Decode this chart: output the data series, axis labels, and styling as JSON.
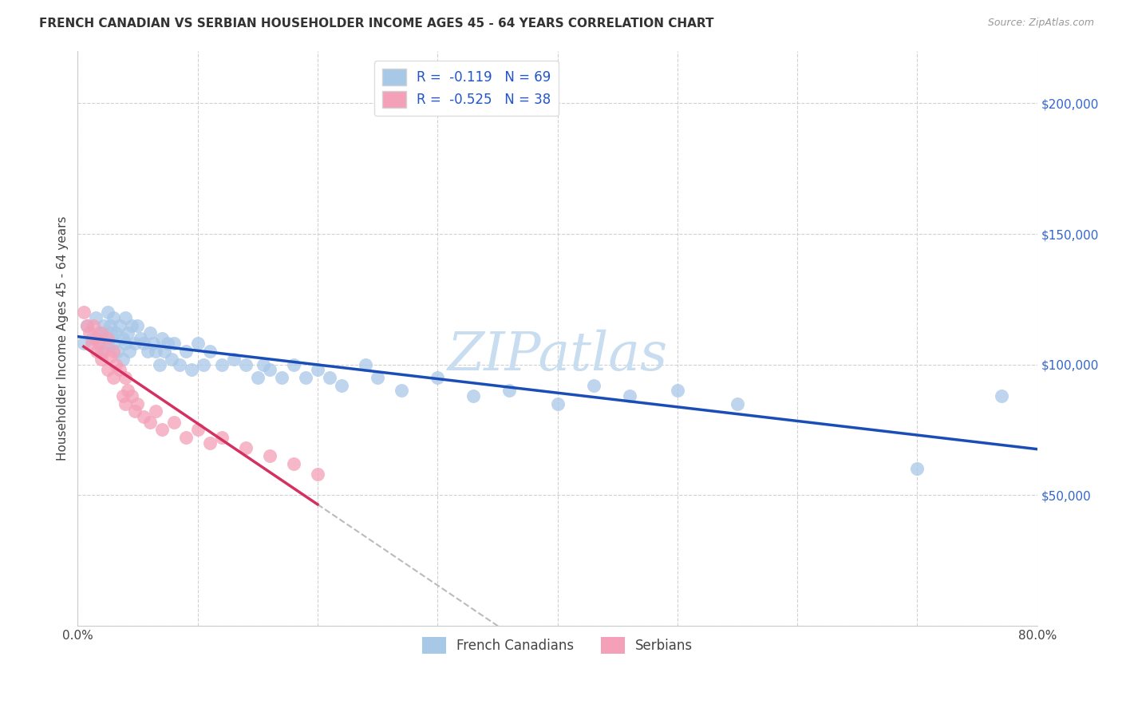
{
  "title": "FRENCH CANADIAN VS SERBIAN HOUSEHOLDER INCOME AGES 45 - 64 YEARS CORRELATION CHART",
  "source": "Source: ZipAtlas.com",
  "ylabel": "Householder Income Ages 45 - 64 years",
  "R_french": -0.119,
  "N_french": 69,
  "R_serbian": -0.525,
  "N_serbian": 38,
  "french_color": "#a8c8e8",
  "serbian_color": "#f4a0b8",
  "french_line_color": "#1a4db5",
  "serbian_line_color": "#d43060",
  "watermark_color": "#c8ddf0",
  "background_color": "#ffffff",
  "grid_color": "#cccccc",
  "french_x": [
    0.005,
    0.008,
    0.012,
    0.015,
    0.018,
    0.02,
    0.02,
    0.022,
    0.025,
    0.025,
    0.027,
    0.028,
    0.03,
    0.03,
    0.032,
    0.033,
    0.035,
    0.038,
    0.038,
    0.04,
    0.04,
    0.042,
    0.043,
    0.045,
    0.048,
    0.05,
    0.052,
    0.055,
    0.058,
    0.06,
    0.063,
    0.065,
    0.068,
    0.07,
    0.072,
    0.075,
    0.078,
    0.08,
    0.085,
    0.09,
    0.095,
    0.1,
    0.105,
    0.11,
    0.12,
    0.13,
    0.14,
    0.15,
    0.155,
    0.16,
    0.17,
    0.18,
    0.19,
    0.2,
    0.21,
    0.22,
    0.24,
    0.25,
    0.27,
    0.3,
    0.33,
    0.36,
    0.4,
    0.43,
    0.46,
    0.5,
    0.55,
    0.7,
    0.77
  ],
  "french_y": [
    108000,
    115000,
    110000,
    118000,
    112000,
    110000,
    105000,
    115000,
    120000,
    108000,
    115000,
    112000,
    118000,
    108000,
    112000,
    105000,
    115000,
    110000,
    102000,
    118000,
    108000,
    112000,
    105000,
    115000,
    108000,
    115000,
    110000,
    108000,
    105000,
    112000,
    108000,
    105000,
    100000,
    110000,
    105000,
    108000,
    102000,
    108000,
    100000,
    105000,
    98000,
    108000,
    100000,
    105000,
    100000,
    102000,
    100000,
    95000,
    100000,
    98000,
    95000,
    100000,
    95000,
    98000,
    95000,
    92000,
    100000,
    95000,
    90000,
    95000,
    88000,
    90000,
    85000,
    92000,
    88000,
    90000,
    85000,
    60000,
    88000
  ],
  "serbian_x": [
    0.005,
    0.008,
    0.01,
    0.012,
    0.013,
    0.015,
    0.016,
    0.018,
    0.02,
    0.02,
    0.022,
    0.025,
    0.025,
    0.027,
    0.03,
    0.03,
    0.032,
    0.035,
    0.038,
    0.04,
    0.04,
    0.042,
    0.045,
    0.048,
    0.05,
    0.055,
    0.06,
    0.065,
    0.07,
    0.08,
    0.09,
    0.1,
    0.11,
    0.12,
    0.14,
    0.16,
    0.18,
    0.2
  ],
  "serbian_y": [
    120000,
    115000,
    112000,
    108000,
    115000,
    110000,
    105000,
    108000,
    112000,
    102000,
    105000,
    110000,
    98000,
    103000,
    105000,
    95000,
    100000,
    98000,
    88000,
    95000,
    85000,
    90000,
    88000,
    82000,
    85000,
    80000,
    78000,
    82000,
    75000,
    78000,
    72000,
    75000,
    70000,
    72000,
    68000,
    65000,
    62000,
    58000
  ],
  "xlim": [
    0,
    0.8
  ],
  "ylim": [
    0,
    220000
  ],
  "x_ticks": [
    0.0,
    0.1,
    0.2,
    0.3,
    0.4,
    0.5,
    0.6,
    0.7,
    0.8
  ],
  "y_ticks": [
    0,
    50000,
    100000,
    150000,
    200000
  ],
  "y_tick_labels": [
    "",
    "$50,000",
    "$100,000",
    "$150,000",
    "$200,000"
  ]
}
